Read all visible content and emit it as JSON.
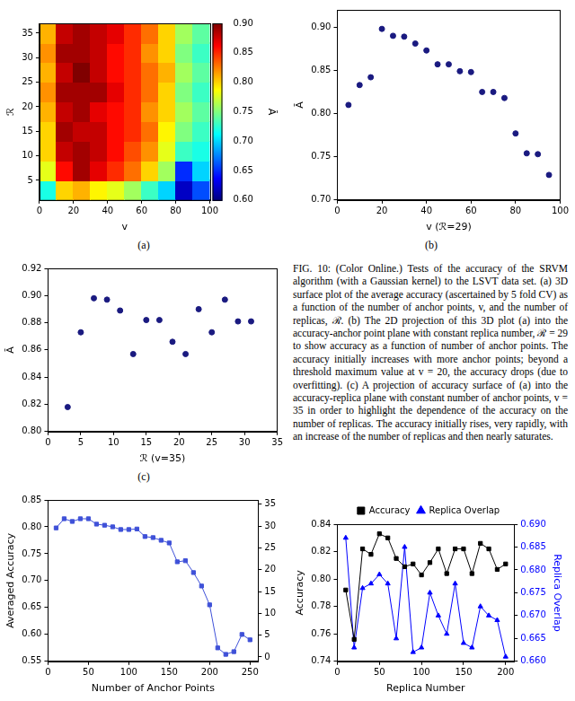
{
  "chart_data": [
    {
      "type": "heatmap",
      "panel": "(a)",
      "x_label": "v",
      "y_label": "ℛ",
      "x": [
        5,
        15,
        25,
        35,
        45,
        55,
        65,
        75,
        85,
        95
      ],
      "y": [
        3,
        7,
        11,
        15,
        19,
        23,
        27,
        31,
        35
      ],
      "z": [
        [
          0.72,
          0.8,
          0.81,
          0.79,
          0.78,
          0.76,
          0.73,
          0.7,
          0.62,
          0.66
        ],
        [
          0.78,
          0.86,
          0.89,
          0.87,
          0.85,
          0.83,
          0.8,
          0.76,
          0.65,
          0.7
        ],
        [
          0.8,
          0.88,
          0.89,
          0.88,
          0.86,
          0.84,
          0.82,
          0.78,
          0.73,
          0.72
        ],
        [
          0.8,
          0.89,
          0.88,
          0.88,
          0.86,
          0.85,
          0.83,
          0.79,
          0.75,
          0.73
        ],
        [
          0.81,
          0.88,
          0.89,
          0.87,
          0.86,
          0.85,
          0.82,
          0.8,
          0.76,
          0.74
        ],
        [
          0.82,
          0.89,
          0.89,
          0.89,
          0.87,
          0.85,
          0.83,
          0.8,
          0.75,
          0.73
        ],
        [
          0.81,
          0.88,
          0.9,
          0.88,
          0.86,
          0.85,
          0.83,
          0.81,
          0.76,
          0.74
        ],
        [
          0.82,
          0.89,
          0.89,
          0.88,
          0.86,
          0.85,
          0.82,
          0.8,
          0.75,
          0.73
        ],
        [
          0.81,
          0.88,
          0.89,
          0.88,
          0.87,
          0.85,
          0.83,
          0.8,
          0.76,
          0.74
        ]
      ],
      "xlim": [
        0,
        100
      ],
      "xticks": [
        0,
        20,
        40,
        60,
        80,
        100
      ],
      "ylim": [
        1,
        37
      ],
      "yticks": [
        5,
        10,
        15,
        20,
        25,
        30,
        35
      ],
      "colorbar": {
        "label": "Ā",
        "lim": [
          0.6,
          0.9
        ],
        "ticks": [
          {
            "value": 0.6,
            "label": "0.60"
          },
          0.65,
          {
            "value": 0.7,
            "label": "0.70"
          },
          0.75,
          {
            "value": 0.8,
            "label": "0.80"
          },
          0.85,
          {
            "value": 0.9,
            "label": "0.90"
          }
        ]
      },
      "grid": false
    },
    {
      "type": "scatter",
      "panel": "(b)",
      "x_label": "v (ℛ=29)",
      "y_label": "Ā",
      "x": [
        5,
        10,
        15,
        20,
        25,
        30,
        35,
        40,
        45,
        50,
        55,
        60,
        65,
        70,
        75,
        80,
        85,
        90,
        95
      ],
      "values": [
        0.81,
        0.833,
        0.842,
        0.898,
        0.89,
        0.889,
        0.881,
        0.873,
        0.857,
        0.857,
        0.849,
        0.848,
        0.825,
        0.825,
        0.818,
        0.777,
        0.754,
        0.753,
        0.729
      ],
      "color": "#1a1a80",
      "marker": "circle",
      "xlim": [
        0,
        100
      ],
      "xticks": [
        0,
        20,
        40,
        60,
        80,
        100
      ],
      "ylim": [
        0.7,
        0.92
      ],
      "yticks": [
        {
          "value": 0.7,
          "label": "0.70"
        },
        0.75,
        {
          "value": 0.8,
          "label": "0.80"
        },
        0.85,
        {
          "value": 0.9,
          "label": "0.90"
        }
      ],
      "grid": false
    },
    {
      "type": "scatter",
      "panel": "(c)",
      "x_label": "ℛ (v=35)",
      "y_label": "Ā",
      "x": [
        3,
        5,
        7,
        9,
        11,
        13,
        15,
        17,
        19,
        21,
        23,
        25,
        27,
        29,
        31
      ],
      "values": [
        0.818,
        0.873,
        0.898,
        0.897,
        0.889,
        0.857,
        0.882,
        0.882,
        0.866,
        0.857,
        0.89,
        0.873,
        0.897,
        0.881,
        0.881
      ],
      "color": "#1a1a80",
      "marker": "circle",
      "xlim": [
        0,
        35
      ],
      "xticks": [
        0,
        5,
        10,
        15,
        20,
        25,
        30,
        35
      ],
      "ylim": [
        0.8,
        0.92
      ],
      "yticks": [
        {
          "value": 0.8,
          "label": "0.80"
        },
        0.82,
        0.84,
        0.86,
        0.88,
        {
          "value": 0.9,
          "label": "0.90"
        },
        0.92
      ],
      "grid": false
    },
    {
      "type": "line",
      "x_label": "Number of Anchor Points",
      "y_label": "Averaged Accuracy",
      "x": [
        10,
        20,
        30,
        40,
        50,
        60,
        70,
        80,
        90,
        100,
        110,
        120,
        130,
        140,
        150,
        160,
        170,
        180,
        190,
        200,
        210,
        220,
        230,
        240,
        250
      ],
      "values": [
        0.798,
        0.815,
        0.81,
        0.815,
        0.815,
        0.805,
        0.803,
        0.8,
        0.795,
        0.795,
        0.796,
        0.782,
        0.78,
        0.775,
        0.77,
        0.735,
        0.737,
        0.715,
        0.69,
        0.655,
        0.575,
        0.563,
        0.568,
        0.6,
        0.59
      ],
      "color": "#3f51d8",
      "marker": "square",
      "line_style": "solid",
      "xlim": [
        0,
        260
      ],
      "xticks": [
        0,
        50,
        100,
        150,
        200,
        250
      ],
      "ylim": [
        0.55,
        0.85
      ],
      "yticks": [
        0.55,
        {
          "value": 0.6,
          "label": "0.60"
        },
        0.65,
        {
          "value": 0.7,
          "label": "0.70"
        },
        0.75,
        {
          "value": 0.8,
          "label": "0.80"
        },
        0.85
      ],
      "y2lim": [
        -1,
        36
      ],
      "y2ticks": [
        0,
        5,
        10,
        15,
        20,
        25,
        30,
        35
      ],
      "grid": false
    },
    {
      "type": "line",
      "x_label": "Replica Number",
      "y_label": "Accuracy",
      "y2_label": "Replica Overlap",
      "x": [
        10,
        20,
        30,
        40,
        50,
        60,
        70,
        80,
        90,
        100,
        110,
        120,
        130,
        140,
        150,
        160,
        170,
        180,
        190,
        200
      ],
      "series": [
        {
          "name": "Accuracy",
          "color": "#000000",
          "marker": "square",
          "line_style": "solid",
          "values": [
            0.792,
            0.756,
            0.822,
            0.818,
            0.833,
            0.83,
            0.815,
            0.809,
            0.811,
            0.803,
            0.812,
            0.822,
            0.804,
            0.822,
            0.822,
            0.804,
            0.826,
            0.822,
            0.807,
            0.811
          ]
        },
        {
          "name": "Replica Overlap",
          "color": "#0000ff",
          "marker": "triangle",
          "line_style": "solid",
          "axis": "y2",
          "values": [
            0.687,
            0.663,
            0.676,
            0.677,
            0.679,
            0.677,
            0.665,
            0.685,
            0.662,
            0.663,
            0.675,
            0.67,
            0.666,
            0.677,
            0.664,
            0.663,
            0.672,
            0.67,
            0.669,
            0.661
          ]
        }
      ],
      "xlim": [
        0,
        210
      ],
      "xticks": [
        0,
        50,
        100,
        150,
        200
      ],
      "ylim": [
        0.74,
        0.84
      ],
      "yticks": [
        0.74,
        0.76,
        0.78,
        {
          "value": 0.8,
          "label": "0.80"
        },
        0.82,
        0.84
      ],
      "y2lim": [
        0.66,
        0.69
      ],
      "y2ticks": [
        {
          "value": 0.66,
          "label": "0.660"
        },
        0.665,
        {
          "value": 0.67,
          "label": "0.670"
        },
        0.675,
        {
          "value": 0.68,
          "label": "0.680"
        },
        0.685,
        {
          "value": 0.69,
          "label": "0.690"
        }
      ],
      "legend": "top",
      "grid": false
    }
  ],
  "caption": "FIG. 10: (Color Online.) Tests of the accuracy of the SRVM algorithm (with a Gaussian kernel) to the LSVT data set. (a) 3D surface plot of the average accuracy (ascertained by 5 fold CV) as a function of the number of anchor points, v, and the number of replicas, ℛ. (b) The 2D projection of this 3D plot (a) into the accuracy-anchor point plane with constant replica number, ℛ = 29 to show accuracy as a function of number of anchor points. The accuracy initially increases with more anchor points; beyond a threshold maximum value at v = 20, the accuracy drops (due to overfitting). (c) A projection of accuracy surface of (a) into the accuracy-replica plane with constant number of anchor points, v = 35 in order to highlight the dependence of the accuracy on the number of replicas. The accuracy initially rises, very rapidly, with an increase of the number of replicas and then nearly saturates."
}
